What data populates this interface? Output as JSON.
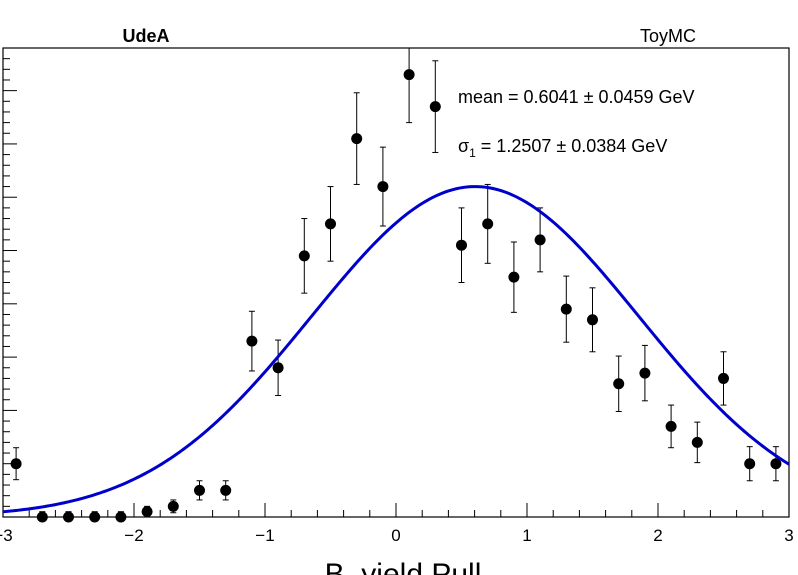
{
  "header": {
    "left_label": "UdeA",
    "right_label": "ToyMC"
  },
  "annotations": {
    "mean": "mean = 0.6041 ± 0.0459 GeV",
    "sigma_symbol": "σ",
    "sigma_sub": "1",
    "sigma_value": " = 1.2507 ± 0.0384 GeV"
  },
  "chart_data": {
    "type": "scatter",
    "title": "",
    "xlabel": "B_yield Pull",
    "ylabel": "",
    "xlim": [
      -3,
      3
    ],
    "ylim": [
      0,
      44
    ],
    "x_ticks": [
      -3,
      -2,
      -1,
      0,
      1,
      2,
      3
    ],
    "x_tick_labels": [
      "−3",
      "−2",
      "−1",
      "0",
      "1",
      "2",
      "3"
    ],
    "grid": false,
    "series": [
      {
        "type": "points_with_errors",
        "color": "#000000",
        "points": [
          {
            "x": -2.9,
            "y": 5.0,
            "err": 1.5
          },
          {
            "x": -2.7,
            "y": 0.0,
            "err": 0.5
          },
          {
            "x": -2.5,
            "y": 0.0,
            "err": 0.5
          },
          {
            "x": -2.3,
            "y": 0.0,
            "err": 0.5
          },
          {
            "x": -2.1,
            "y": 0.0,
            "err": 0.5
          },
          {
            "x": -1.9,
            "y": 0.5,
            "err": 0.5
          },
          {
            "x": -1.7,
            "y": 1.0,
            "err": 0.6
          },
          {
            "x": -1.5,
            "y": 2.5,
            "err": 0.9
          },
          {
            "x": -1.3,
            "y": 2.5,
            "err": 0.9
          },
          {
            "x": -1.1,
            "y": 16.5,
            "err": 2.8
          },
          {
            "x": -0.9,
            "y": 14.0,
            "err": 2.6
          },
          {
            "x": -0.7,
            "y": 24.5,
            "err": 3.5
          },
          {
            "x": -0.5,
            "y": 27.5,
            "err": 3.5
          },
          {
            "x": -0.3,
            "y": 35.5,
            "err": 4.3
          },
          {
            "x": -0.1,
            "y": 31.0,
            "err": 3.7
          },
          {
            "x": 0.1,
            "y": 41.5,
            "err": 4.5
          },
          {
            "x": 0.3,
            "y": 38.5,
            "err": 4.3
          },
          {
            "x": 0.5,
            "y": 25.5,
            "err": 3.5
          },
          {
            "x": 0.7,
            "y": 27.5,
            "err": 3.7
          },
          {
            "x": 0.9,
            "y": 22.5,
            "err": 3.3
          },
          {
            "x": 1.1,
            "y": 26.0,
            "err": 3.0
          },
          {
            "x": 1.3,
            "y": 19.5,
            "err": 3.1
          },
          {
            "x": 1.5,
            "y": 18.5,
            "err": 3.0
          },
          {
            "x": 1.7,
            "y": 12.5,
            "err": 2.6
          },
          {
            "x": 1.9,
            "y": 13.5,
            "err": 2.6
          },
          {
            "x": 2.1,
            "y": 8.5,
            "err": 2.0
          },
          {
            "x": 2.3,
            "y": 7.0,
            "err": 1.9
          },
          {
            "x": 2.5,
            "y": 13.0,
            "err": 2.5
          },
          {
            "x": 2.7,
            "y": 5.0,
            "err": 1.6
          },
          {
            "x": 2.9,
            "y": 5.0,
            "err": 1.6
          }
        ]
      },
      {
        "type": "gaussian_fit",
        "color": "#0000cc",
        "mean": 0.6041,
        "sigma": 1.2507,
        "amplitude": 31.0
      }
    ]
  }
}
